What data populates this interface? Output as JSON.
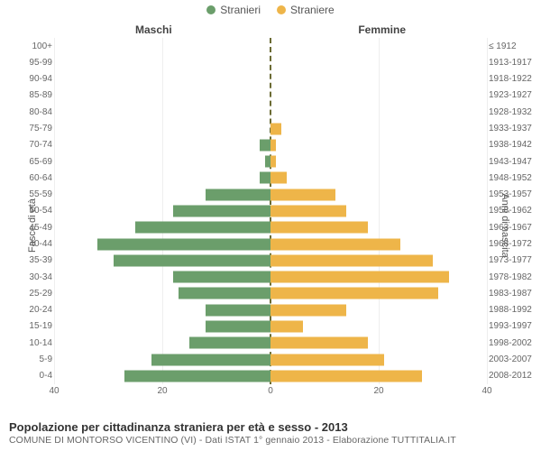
{
  "legend": {
    "male": {
      "label": "Stranieri",
      "color": "#6b9e6b"
    },
    "female": {
      "label": "Straniere",
      "color": "#eeb549"
    }
  },
  "side_titles": {
    "left": "Maschi",
    "right": "Femmine"
  },
  "axis_titles": {
    "left": "Fasce di età",
    "right": "Anni di nascita"
  },
  "title": "Popolazione per cittadinanza straniera per età e sesso - 2013",
  "subtitle": "COMUNE DI MONTORSO VICENTINO (VI) - Dati ISTAT 1° gennaio 2013 - Elaborazione TUTTITALIA.IT",
  "chart": {
    "type": "population-pyramid",
    "x_max": 40,
    "x_ticks": [
      40,
      20,
      0,
      20,
      40
    ],
    "male_color": "#6b9e6b",
    "female_color": "#eeb549",
    "grid_color": "#eeeeee",
    "center_color": "#6b6b33",
    "background_color": "#ffffff",
    "rows": [
      {
        "age": "100+",
        "year": "≤ 1912",
        "m": 0,
        "f": 0
      },
      {
        "age": "95-99",
        "year": "1913-1917",
        "m": 0,
        "f": 0
      },
      {
        "age": "90-94",
        "year": "1918-1922",
        "m": 0,
        "f": 0
      },
      {
        "age": "85-89",
        "year": "1923-1927",
        "m": 0,
        "f": 0
      },
      {
        "age": "80-84",
        "year": "1928-1932",
        "m": 0,
        "f": 0
      },
      {
        "age": "75-79",
        "year": "1933-1937",
        "m": 0,
        "f": 2
      },
      {
        "age": "70-74",
        "year": "1938-1942",
        "m": 2,
        "f": 1
      },
      {
        "age": "65-69",
        "year": "1943-1947",
        "m": 1,
        "f": 1
      },
      {
        "age": "60-64",
        "year": "1948-1952",
        "m": 2,
        "f": 3
      },
      {
        "age": "55-59",
        "year": "1953-1957",
        "m": 12,
        "f": 12
      },
      {
        "age": "50-54",
        "year": "1958-1962",
        "m": 18,
        "f": 14
      },
      {
        "age": "45-49",
        "year": "1963-1967",
        "m": 25,
        "f": 18
      },
      {
        "age": "40-44",
        "year": "1968-1972",
        "m": 32,
        "f": 24
      },
      {
        "age": "35-39",
        "year": "1973-1977",
        "m": 29,
        "f": 30
      },
      {
        "age": "30-34",
        "year": "1978-1982",
        "m": 18,
        "f": 33
      },
      {
        "age": "25-29",
        "year": "1983-1987",
        "m": 17,
        "f": 31
      },
      {
        "age": "20-24",
        "year": "1988-1992",
        "m": 12,
        "f": 14
      },
      {
        "age": "15-19",
        "year": "1993-1997",
        "m": 12,
        "f": 6
      },
      {
        "age": "10-14",
        "year": "1998-2002",
        "m": 15,
        "f": 18
      },
      {
        "age": "5-9",
        "year": "2003-2007",
        "m": 22,
        "f": 21
      },
      {
        "age": "0-4",
        "year": "2008-2012",
        "m": 27,
        "f": 28
      }
    ]
  }
}
